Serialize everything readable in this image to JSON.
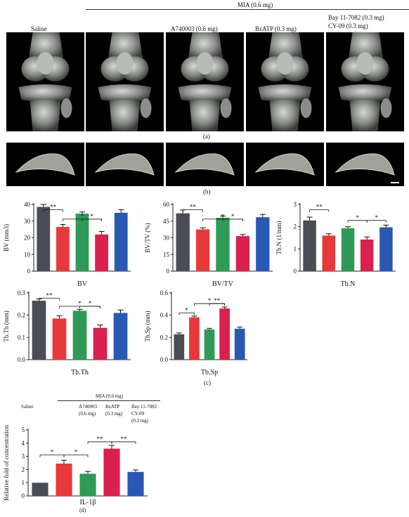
{
  "panelA": {
    "header_group": "MIA (0.6 mg)",
    "labels": [
      "Saline",
      "A740003 (0.6 mg)",
      "BzATP (0.3 mg)",
      "Bay 11-7082 (0.3 mg)",
      "CY-09 (0.3 mg)"
    ],
    "caption": "(a)"
  },
  "panelB": {
    "caption": "(b)"
  },
  "panelC": {
    "caption": "(c)"
  },
  "panelD": {
    "caption": "(d)",
    "header_group": "MIA (0.6 mg)",
    "groups": [
      "Saline",
      "A740003",
      "(0.6 mg)",
      "BzATP",
      "(0.3 mg)",
      "Bay 11-7082",
      "CY-09",
      "(0.3 mg)"
    ]
  },
  "colors": {
    "saline": "#4a4d55",
    "mia": "#e8393a",
    "a740003": "#2f9a58",
    "bzatp": "#d9204e",
    "bay": "#2a59b4"
  },
  "chart_data": [
    {
      "type": "bar",
      "ylabel": "BV (mm3)",
      "xlabel": "BV",
      "ylim": [
        0,
        40
      ],
      "yticks": [
        0,
        10,
        20,
        30,
        40
      ],
      "values": [
        38.5,
        26.5,
        34.5,
        22,
        35
      ],
      "errors": [
        1.5,
        1.5,
        1.0,
        1.8,
        1.8
      ],
      "annotations": [
        "**",
        "*",
        "*"
      ]
    },
    {
      "type": "bar",
      "ylabel": "BV/TV (%)",
      "xlabel": "BV/TV",
      "ylim": [
        0,
        60
      ],
      "yticks": [
        0,
        15,
        30,
        45,
        60
      ],
      "values": [
        52,
        37.5,
        48,
        31.5,
        48.5
      ],
      "errors": [
        3,
        1.5,
        1.5,
        1.5,
        2.5
      ],
      "annotations": [
        "**",
        "*",
        "*"
      ]
    },
    {
      "type": "bar",
      "ylabel": "Tb.N (1/mm)",
      "xlabel": "Tb.N",
      "ylim": [
        0,
        3
      ],
      "yticks": [
        0,
        1,
        2,
        3
      ],
      "values": [
        2.28,
        1.6,
        1.93,
        1.42,
        1.97
      ],
      "errors": [
        0.15,
        0.08,
        0.07,
        0.12,
        0.1
      ],
      "annotations": [
        "**",
        "*",
        "*"
      ]
    },
    {
      "type": "bar",
      "ylabel": "Tb.Th (mm)",
      "xlabel": "Tb.Th",
      "ylim": [
        0,
        0.3
      ],
      "yticks": [
        0.0,
        0.1,
        0.2,
        0.3
      ],
      "values": [
        0.265,
        0.185,
        0.22,
        0.143,
        0.21
      ],
      "errors": [
        0.008,
        0.012,
        0.006,
        0.013,
        0.013
      ],
      "annotations": [
        "**",
        "*",
        "*"
      ]
    },
    {
      "type": "bar",
      "ylabel": "Tb.Sp (mm)",
      "xlabel": "Tb.Sp",
      "ylim": [
        0,
        0.6
      ],
      "yticks": [
        0.0,
        0.2,
        0.4,
        0.6
      ],
      "values": [
        0.228,
        0.38,
        0.272,
        0.46,
        0.278
      ],
      "errors": [
        0.012,
        0.012,
        0.01,
        0.013,
        0.015
      ],
      "annotations": [
        "*",
        "*",
        "**"
      ]
    },
    {
      "type": "bar",
      "ylabel": "Relative fold of concentration",
      "xlabel": "IL-1β",
      "ylim": [
        0,
        5
      ],
      "yticks": [
        0,
        1,
        2,
        3,
        4,
        5
      ],
      "values": [
        1.0,
        2.45,
        1.68,
        3.58,
        1.82
      ],
      "errors": [
        0,
        0.25,
        0.18,
        0.25,
        0.15
      ],
      "annotations": [
        "*",
        "*",
        "**",
        "**"
      ]
    }
  ]
}
